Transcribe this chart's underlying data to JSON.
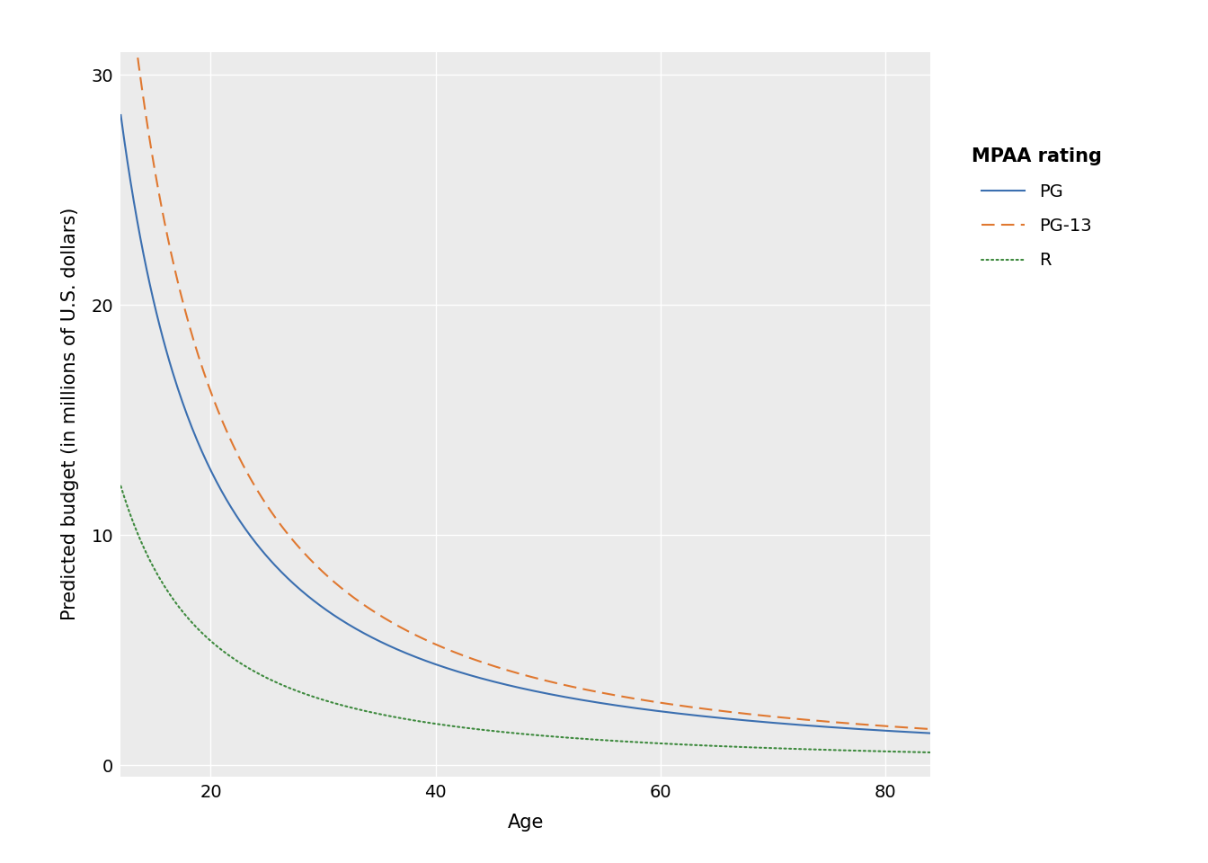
{
  "xlabel": "Age",
  "ylabel": "Predicted budget (in millions of U.S. dollars)",
  "xlim": [
    12,
    84
  ],
  "ylim": [
    -0.5,
    31
  ],
  "xticks": [
    20,
    40,
    60,
    80
  ],
  "yticks": [
    0,
    10,
    20,
    30
  ],
  "age_start": 12,
  "age_end": 84,
  "PG_A": 490.0,
  "PG_n": 1.32,
  "PG13_A": 1800.0,
  "PG13_n": 1.52,
  "R_A": 198.0,
  "R_n": 1.32,
  "PG_color": "#3B6FB0",
  "PG13_color": "#E07830",
  "R_color": "#3E8A3E",
  "legend_title": "MPAA rating",
  "background_color": "#ffffff",
  "panel_background": "#EBEBEB",
  "grid_color": "#ffffff",
  "tick_label_size": 14,
  "axis_label_size": 15,
  "legend_title_size": 15,
  "legend_label_size": 14,
  "line_width": 1.5
}
